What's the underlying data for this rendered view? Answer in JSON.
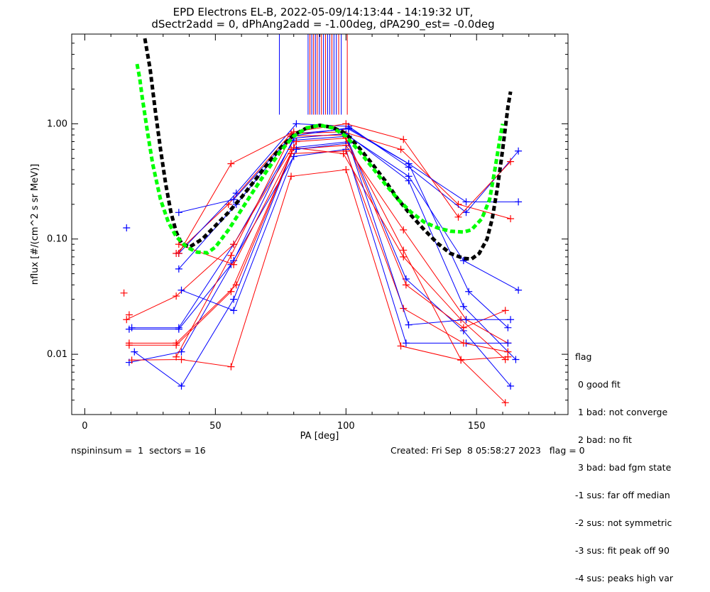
{
  "chart_data": {
    "type": "line",
    "title_line1": "EPD Electrons EL-B, 2022-05-09/14:13:44 - 14:19:32 UT,",
    "title_line2": "dSectr2add = 0, dPhAng2add = -1.00deg, dPA290_est=  -0.0deg",
    "xlabel": "PA [deg]",
    "ylabel": "nflux [#/(cm^2 s sr MeV)]",
    "xlim": [
      -5,
      185
    ],
    "ylim": [
      0.003,
      6.0
    ],
    "yscale": "log",
    "x_ticks": [
      0,
      50,
      100,
      150
    ],
    "y_ticks": [
      {
        "value": 0.01,
        "label": "0.01"
      },
      {
        "value": 0.1,
        "label": "0.10"
      },
      {
        "value": 1.0,
        "label": "1.00"
      }
    ],
    "colors": {
      "red": "#ff0000",
      "blue": "#0000ff",
      "black": "#000000",
      "green": "#00ff00"
    },
    "vlines_top": [
      {
        "x": 74.5,
        "color": "blue"
      },
      {
        "x": 85.5,
        "color": "blue"
      },
      {
        "x": 86.2,
        "color": "red"
      },
      {
        "x": 86.9,
        "color": "blue"
      },
      {
        "x": 87.6,
        "color": "red"
      },
      {
        "x": 88.3,
        "color": "blue"
      },
      {
        "x": 89.0,
        "color": "red"
      },
      {
        "x": 89.8,
        "color": "blue"
      },
      {
        "x": 90.6,
        "color": "red"
      },
      {
        "x": 91.4,
        "color": "blue"
      },
      {
        "x": 92.2,
        "color": "red"
      },
      {
        "x": 93.0,
        "color": "blue"
      },
      {
        "x": 93.8,
        "color": "blue"
      },
      {
        "x": 94.6,
        "color": "red"
      },
      {
        "x": 95.4,
        "color": "blue"
      },
      {
        "x": 96.3,
        "color": "blue"
      },
      {
        "x": 97.2,
        "color": "red"
      },
      {
        "x": 98.2,
        "color": "blue"
      },
      {
        "x": 100.5,
        "color": "red"
      }
    ],
    "series": [
      {
        "color": "blue",
        "points": [
          [
            17,
            0.0085
          ],
          [
            37,
            0.0105
          ],
          [
            57,
            0.065
          ],
          [
            80,
            0.75
          ],
          [
            100,
            0.82
          ],
          [
            124,
            0.32
          ],
          [
            145,
            0.026
          ],
          [
            165,
            0.009
          ]
        ]
      },
      {
        "color": "red",
        "points": [
          [
            18,
            0.0089
          ],
          [
            37,
            0.009
          ],
          [
            56,
            0.0078
          ],
          [
            79,
            0.35
          ],
          [
            100,
            0.4
          ],
          [
            121,
            0.0118
          ],
          [
            144,
            0.0089
          ],
          [
            162,
            0.0095
          ]
        ]
      },
      {
        "color": "blue",
        "points": [
          [
            18,
            0.017
          ],
          [
            36,
            0.017
          ],
          [
            57,
            0.09
          ],
          [
            80,
            0.72
          ],
          [
            101,
            0.78
          ],
          [
            124,
            0.35
          ],
          [
            145,
            0.065
          ],
          [
            166,
            0.036
          ]
        ]
      },
      {
        "color": "red",
        "points": [
          [
            16,
            0.02
          ],
          [
            35,
            0.032
          ],
          [
            57,
            0.09
          ],
          [
            79,
            0.6
          ],
          [
            100,
            0.65
          ],
          [
            122,
            0.12
          ],
          [
            146,
            0.02
          ],
          [
            162,
            0.0125
          ]
        ]
      },
      {
        "color": "blue",
        "points": [
          [
            17,
            0.0165
          ],
          [
            36,
            0.0165
          ],
          [
            56,
            0.06
          ],
          [
            80,
            0.52
          ],
          [
            100,
            0.6
          ],
          [
            123,
            0.0125
          ],
          [
            146,
            0.0125
          ],
          [
            162,
            0.0125
          ]
        ]
      },
      {
        "color": "red",
        "points": [
          [
            17,
            0.012
          ],
          [
            35,
            0.012
          ],
          [
            56,
            0.035
          ],
          [
            79,
            0.55
          ],
          [
            100,
            0.58
          ],
          [
            122,
            0.025
          ],
          [
            145,
            0.0125
          ],
          [
            162,
            0.0105
          ]
        ]
      },
      {
        "color": "blue",
        "points": [
          [
            19,
            0.0105
          ],
          [
            37,
            0.0053
          ],
          [
            57,
            0.03
          ],
          [
            80,
            0.62
          ],
          [
            101,
            0.7
          ],
          [
            123,
            0.045
          ],
          [
            145,
            0.016
          ],
          [
            163,
            0.0053
          ]
        ]
      },
      {
        "color": "red",
        "points": [
          [
            17,
            0.0125
          ],
          [
            35,
            0.0125
          ],
          [
            58,
            0.04
          ],
          [
            81,
            0.7
          ],
          [
            100,
            0.75
          ],
          [
            123,
            0.04
          ],
          [
            145,
            0.017
          ],
          [
            161,
            0.024
          ]
        ]
      },
      {
        "color": "blue",
        "points": [
          [
            36,
            0.055
          ],
          [
            58,
            0.2
          ],
          [
            80,
            0.82
          ],
          [
            101,
            0.9
          ],
          [
            124,
            0.45
          ],
          [
            147,
            0.035
          ],
          [
            162,
            0.017
          ]
        ]
      },
      {
        "color": "red",
        "points": [
          [
            35,
            0.075
          ],
          [
            55,
            0.2
          ],
          [
            79,
            0.82
          ],
          [
            99,
            0.85
          ],
          [
            121,
            0.6
          ],
          [
            143,
            0.2
          ],
          [
            163,
            0.15
          ]
        ]
      },
      {
        "color": "blue",
        "points": [
          [
            36,
            0.075
          ],
          [
            58,
            0.25
          ],
          [
            81,
            1.0
          ],
          [
            101,
            0.95
          ],
          [
            124,
            0.42
          ],
          [
            146,
            0.17
          ],
          [
            166,
            0.58
          ]
        ]
      },
      {
        "color": "red",
        "points": [
          [
            36,
            0.075
          ],
          [
            56,
            0.45
          ],
          [
            80,
            0.85
          ],
          [
            100,
            1.0
          ],
          [
            122,
            0.73
          ],
          [
            143,
            0.155
          ],
          [
            163,
            0.47
          ]
        ]
      },
      {
        "color": "blue",
        "points": [
          [
            36,
            0.17
          ],
          [
            57,
            0.22
          ],
          [
            79,
            0.78
          ],
          [
            101,
            0.92
          ],
          [
            124,
            0.45
          ],
          [
            146,
            0.21
          ],
          [
            166,
            0.21
          ]
        ]
      },
      {
        "color": "red",
        "points": [
          [
            36,
            0.09
          ],
          [
            57,
            0.06
          ],
          [
            80,
            0.62
          ],
          [
            99,
            0.55
          ],
          [
            122,
            0.07
          ],
          [
            144,
            0.02
          ],
          [
            161,
            0.009
          ]
        ]
      },
      {
        "color": "blue",
        "points": [
          [
            37,
            0.036
          ],
          [
            57,
            0.024
          ],
          [
            81,
            0.6
          ],
          [
            101,
            0.68
          ],
          [
            124,
            0.018
          ],
          [
            146,
            0.02
          ],
          [
            163,
            0.02
          ]
        ]
      },
      {
        "color": "red",
        "points": [
          [
            35,
            0.0095
          ],
          [
            56,
            0.072
          ],
          [
            79,
            0.78
          ],
          [
            99,
            0.8
          ],
          [
            122,
            0.08
          ],
          [
            144,
            0.009
          ],
          [
            161,
            0.0038
          ]
        ]
      }
    ],
    "isolated_points": [
      {
        "x": 16,
        "y": 0.125,
        "color": "blue"
      },
      {
        "x": 15,
        "y": 0.034,
        "color": "red"
      },
      {
        "x": 17,
        "y": 0.022,
        "color": "red"
      }
    ],
    "fits": [
      {
        "name": "black dashed fit",
        "color": "black",
        "points": [
          [
            23,
            5.5
          ],
          [
            25,
            3.0
          ],
          [
            27,
            1.3
          ],
          [
            29,
            0.6
          ],
          [
            31,
            0.3
          ],
          [
            33,
            0.17
          ],
          [
            35,
            0.115
          ],
          [
            37,
            0.092
          ],
          [
            40,
            0.085
          ],
          [
            45,
            0.1
          ],
          [
            50,
            0.13
          ],
          [
            55,
            0.17
          ],
          [
            60,
            0.23
          ],
          [
            65,
            0.32
          ],
          [
            70,
            0.45
          ],
          [
            75,
            0.62
          ],
          [
            80,
            0.8
          ],
          [
            85,
            0.92
          ],
          [
            90,
            0.97
          ],
          [
            95,
            0.93
          ],
          [
            100,
            0.82
          ],
          [
            105,
            0.62
          ],
          [
            110,
            0.45
          ],
          [
            115,
            0.32
          ],
          [
            120,
            0.22
          ],
          [
            125,
            0.16
          ],
          [
            130,
            0.12
          ],
          [
            135,
            0.092
          ],
          [
            140,
            0.075
          ],
          [
            145,
            0.068
          ],
          [
            148,
            0.067
          ],
          [
            151,
            0.075
          ],
          [
            154,
            0.1
          ],
          [
            156,
            0.15
          ],
          [
            158,
            0.28
          ],
          [
            160,
            0.6
          ],
          [
            162,
            1.4
          ],
          [
            163,
            1.9
          ]
        ]
      },
      {
        "name": "green dashed fit",
        "color": "green",
        "points": [
          [
            20,
            3.3
          ],
          [
            21,
            2.5
          ],
          [
            22,
            1.7
          ],
          [
            24,
            0.85
          ],
          [
            26,
            0.45
          ],
          [
            29,
            0.22
          ],
          [
            32,
            0.14
          ],
          [
            35,
            0.105
          ],
          [
            39,
            0.085
          ],
          [
            43,
            0.077
          ],
          [
            47,
            0.076
          ],
          [
            50,
            0.085
          ],
          [
            55,
            0.12
          ],
          [
            60,
            0.18
          ],
          [
            65,
            0.27
          ],
          [
            70,
            0.4
          ],
          [
            75,
            0.58
          ],
          [
            80,
            0.78
          ],
          [
            85,
            0.92
          ],
          [
            90,
            0.97
          ],
          [
            95,
            0.92
          ],
          [
            100,
            0.78
          ],
          [
            105,
            0.58
          ],
          [
            110,
            0.42
          ],
          [
            115,
            0.3
          ],
          [
            120,
            0.22
          ],
          [
            125,
            0.17
          ],
          [
            130,
            0.14
          ],
          [
            135,
            0.125
          ],
          [
            140,
            0.117
          ],
          [
            145,
            0.115
          ],
          [
            148,
            0.12
          ],
          [
            152,
            0.15
          ],
          [
            155,
            0.22
          ],
          [
            157,
            0.4
          ],
          [
            159,
            0.75
          ],
          [
            160,
            1.0
          ]
        ]
      }
    ]
  },
  "legend": {
    "lines": [
      "flag",
      " 0 good fit",
      " 1 bad: not converge",
      " 2 bad: no fit",
      " 3 bad: bad fgm state",
      "-1 sus: far off median",
      "-2 sus: not symmetric",
      "-3 sus: fit peak off 90",
      "-4 sus: peaks high var"
    ]
  },
  "footer": {
    "left": "nspininsum =  1  sectors = 16",
    "right": "Created: Fri Sep  8 05:58:27 2023   flag = 0"
  }
}
